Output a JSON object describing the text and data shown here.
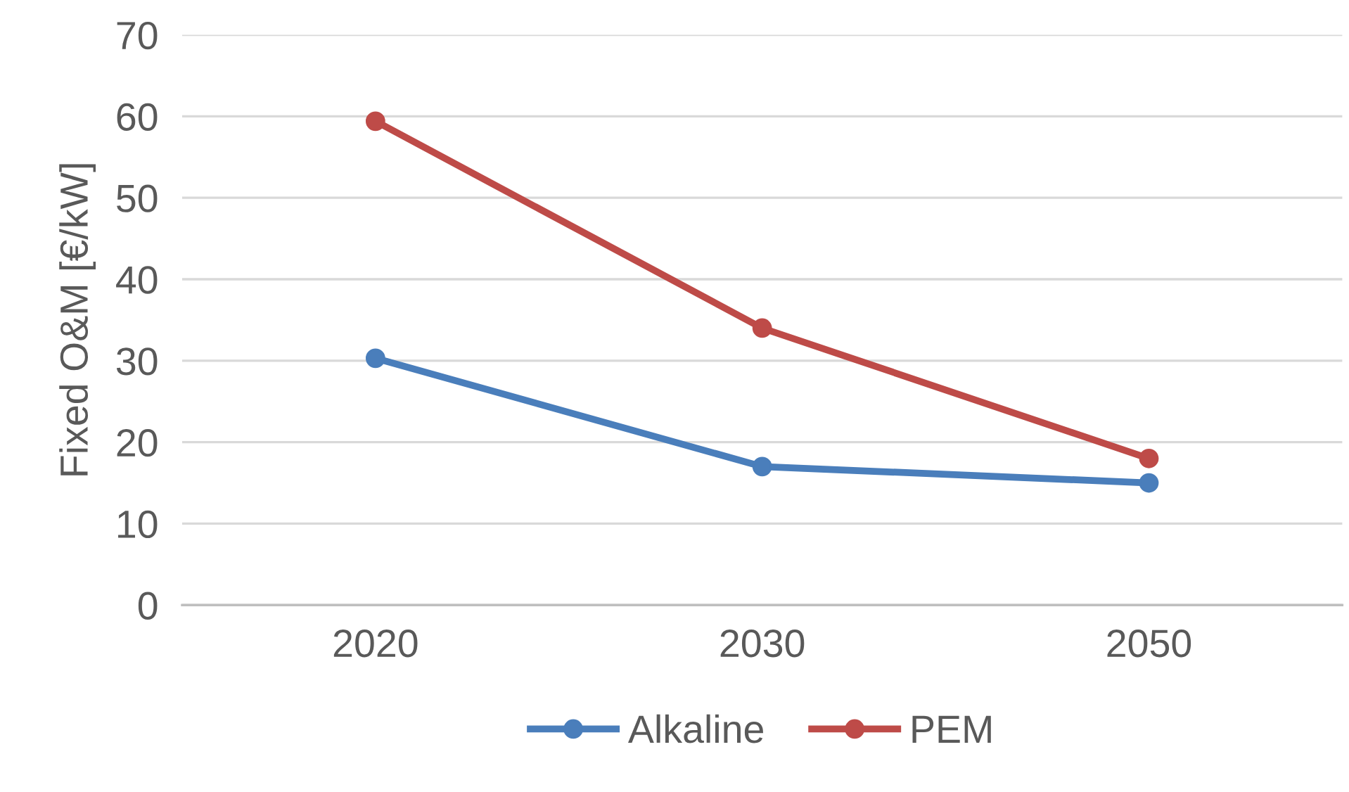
{
  "chart_data": {
    "type": "line",
    "ylabel": "Fixed O&M [€/kW]",
    "categories": [
      "2020",
      "2030",
      "2050"
    ],
    "series": [
      {
        "name": "Alkaline",
        "color": "#4a7ebb",
        "values": [
          30.3,
          17,
          15
        ]
      },
      {
        "name": "PEM",
        "color": "#be4b48",
        "values": [
          59.4,
          34,
          18
        ]
      }
    ],
    "ylim": [
      0,
      70
    ],
    "yticks": [
      0,
      10,
      20,
      30,
      40,
      50,
      60,
      70
    ],
    "grid": "y",
    "legend": "bottom",
    "marker": "circle",
    "line_style": "solid"
  }
}
